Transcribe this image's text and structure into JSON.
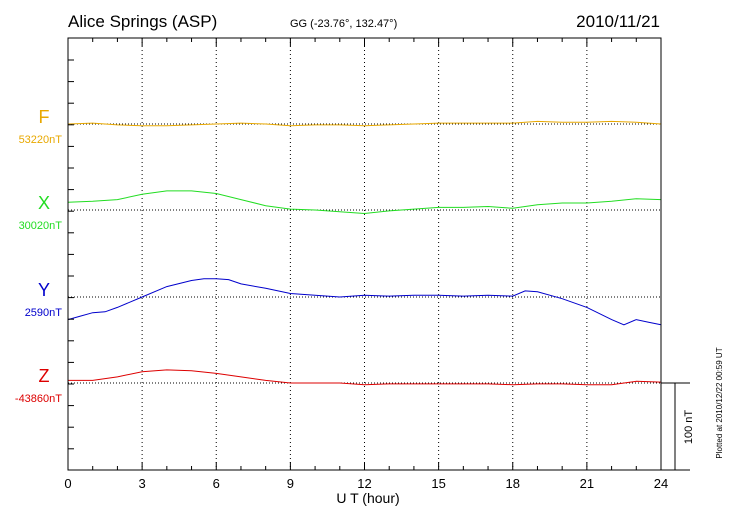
{
  "chart_data": {
    "type": "line",
    "title": "Alice Springs (ASP)",
    "subtitle": "GG (-23.76°, 132.47°)",
    "date": "2010/11/21",
    "xlabel": "U T (hour)",
    "xlim": [
      0,
      24
    ],
    "xticks": [
      "0",
      "3",
      "6",
      "9",
      "12",
      "15",
      "18",
      "21",
      "24"
    ],
    "grid": true,
    "scale_bar_label": "100 nT",
    "footnote": "Plotted at 2010/12/22 00:59 UT",
    "series": [
      {
        "name": "F",
        "baseline_label": "53220nT",
        "color": "#e8a800",
        "x": [
          0,
          1,
          2,
          3,
          4,
          5,
          6,
          7,
          8,
          9,
          10,
          11,
          12,
          13,
          14,
          15,
          16,
          17,
          18,
          19,
          20,
          21,
          22,
          23,
          24
        ],
        "y": [
          0,
          1,
          -1,
          -2,
          -2,
          -1,
          0,
          1,
          0,
          -2,
          -1,
          -1,
          -2,
          -1,
          0,
          1,
          1,
          1,
          1,
          3,
          2,
          2,
          3,
          2,
          0
        ]
      },
      {
        "name": "X",
        "baseline_label": "30020nT",
        "color": "#22dd22",
        "x": [
          0,
          1,
          2,
          3,
          4,
          5,
          6,
          7,
          8,
          9,
          10,
          11,
          12,
          13,
          14,
          15,
          16,
          17,
          18,
          19,
          20,
          21,
          22,
          23,
          24
        ],
        "y": [
          9,
          10,
          12,
          18,
          22,
          22,
          19,
          12,
          5,
          1,
          0,
          -2,
          -4,
          -1,
          1,
          3,
          3,
          4,
          2,
          6,
          8,
          8,
          10,
          13,
          12
        ]
      },
      {
        "name": "Y",
        "baseline_label": "2590nT",
        "color": "#0000cc",
        "x": [
          0,
          0.5,
          1,
          1.5,
          2,
          3,
          4,
          5,
          5.5,
          6,
          6.5,
          7,
          8,
          9,
          10,
          11,
          12,
          13,
          14,
          15,
          16,
          17,
          18,
          18.5,
          19,
          20,
          21,
          22,
          22.5,
          23,
          23.5,
          24
        ],
        "y": [
          -26,
          -22,
          -18,
          -17,
          -12,
          0,
          12,
          19,
          21,
          21,
          20,
          15,
          10,
          4,
          2,
          0,
          2,
          1,
          2,
          2,
          1,
          2,
          1,
          7,
          6,
          -2,
          -12,
          -26,
          -32,
          -26,
          -29,
          -32
        ]
      },
      {
        "name": "Z",
        "baseline_label": "-43860nT",
        "color": "#dd0000",
        "x": [
          0,
          1,
          2,
          3,
          4,
          5,
          6,
          7,
          8,
          9,
          10,
          11,
          12,
          13,
          14,
          15,
          16,
          17,
          18,
          19,
          20,
          21,
          22,
          23,
          24
        ],
        "y": [
          3,
          3,
          7,
          13,
          15,
          14,
          11,
          7,
          3,
          0,
          0,
          0,
          -2,
          -1,
          -1,
          -1,
          -1,
          -1,
          -2,
          -1,
          -1,
          -2,
          -2,
          2,
          1
        ]
      }
    ]
  }
}
